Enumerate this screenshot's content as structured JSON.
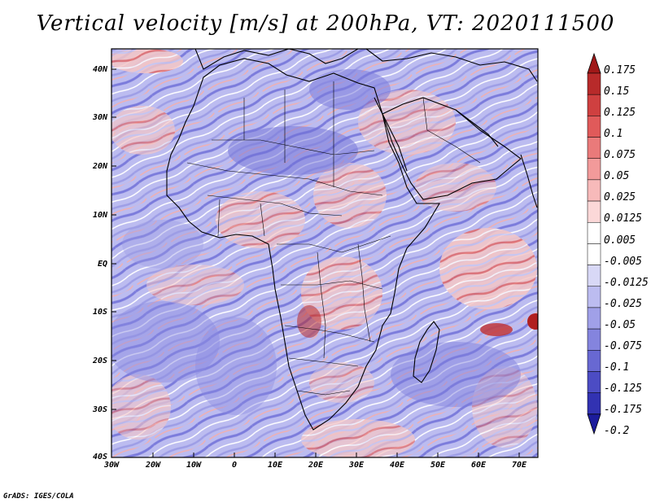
{
  "title": "Vertical velocity [m/s] at 200hPa, VT: 2020111500",
  "credit": "GrADS: IGES/COLA",
  "lat_labels": [
    "40N",
    "30N",
    "20N",
    "10N",
    "EQ",
    "10S",
    "20S",
    "30S",
    "40S"
  ],
  "lon_labels": [
    "30W",
    "20W",
    "10W",
    "0",
    "10E",
    "20E",
    "30E",
    "40E",
    "50E",
    "60E",
    "70E"
  ],
  "colorbar": {
    "levels": [
      "0.175",
      "0.15",
      "0.125",
      "0.1",
      "0.075",
      "0.05",
      "0.025",
      "0.0125",
      "0.005",
      "-0.005",
      "-0.0125",
      "-0.025",
      "-0.05",
      "-0.075",
      "-0.1",
      "-0.125",
      "-0.175",
      "-0.2"
    ],
    "colors": [
      "#a01818",
      "#b82a2a",
      "#cf4040",
      "#e05a5a",
      "#ea7a7a",
      "#f29a9a",
      "#f7baba",
      "#fbd8d8",
      "#ffffff",
      "#ffffff",
      "#d8d8f6",
      "#bcbcf0",
      "#a0a0e8",
      "#8484de",
      "#6868d2",
      "#4c4cc4",
      "#3232b2",
      "#1c1c9c"
    ]
  },
  "colors": {
    "positive": "#e85a5a",
    "negative": "#5a5ad8",
    "background_mix": "#c8c8f0"
  }
}
